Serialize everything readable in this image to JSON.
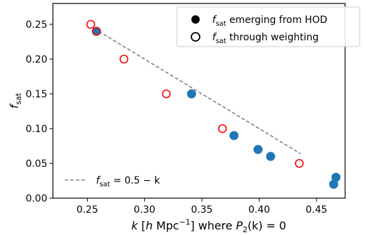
{
  "chart_data": {
    "type": "scatter",
    "xlabel": "k [h Mpc⁻¹] where P₂(k) = 0",
    "ylabel": "f_sat",
    "xlim": [
      0.22,
      0.475
    ],
    "ylim": [
      0.0,
      0.28
    ],
    "xticks": [
      0.25,
      0.3,
      0.35,
      0.4,
      0.45
    ],
    "xtick_labels": [
      "0.25",
      "0.30",
      "0.35",
      "0.40",
      "0.45"
    ],
    "yticks": [
      0.0,
      0.05,
      0.1,
      0.15,
      0.2,
      0.25
    ],
    "ytick_labels": [
      "0.00",
      "0.05",
      "0.10",
      "0.15",
      "0.20",
      "0.25"
    ],
    "grid": false,
    "legend_position": "top-right",
    "series": [
      {
        "name": "f_sat emerging from HOD",
        "marker": "filled-circle",
        "color": "#1f77b4",
        "x": [
          0.258,
          0.341,
          0.378,
          0.399,
          0.41,
          0.465,
          0.467
        ],
        "y": [
          0.24,
          0.15,
          0.09,
          0.07,
          0.06,
          0.02,
          0.03
        ]
      },
      {
        "name": "f_sat through weighting",
        "marker": "open-circle",
        "color": "#ff0000",
        "x": [
          0.253,
          0.258,
          0.282,
          0.319,
          0.368,
          0.435
        ],
        "y": [
          0.25,
          0.24,
          0.2,
          0.15,
          0.1,
          0.05
        ]
      }
    ],
    "line": {
      "name": "f_sat = 0.5 − k",
      "style": "dashed",
      "color": "#808080",
      "x": [
        0.256,
        0.436
      ],
      "y": [
        0.244,
        0.064
      ]
    },
    "legend_upper": [
      {
        "symbol": "filled-circle",
        "prefix": "f",
        "sub": "sat",
        "suffix": " emerging from HOD"
      },
      {
        "symbol": "open-circle",
        "prefix": "f",
        "sub": "sat",
        "suffix": " through weighting"
      }
    ],
    "legend_lower": {
      "prefix": "f",
      "sub": "sat",
      "suffix": " = 0.5 − k"
    },
    "axis_label_parts": {
      "x_k": "k",
      "x_units_open": " [",
      "x_h": "h",
      "x_mpc": " Mpc",
      "x_exp": "−1",
      "x_units_close": "] where ",
      "x_p": "P",
      "x_p_sub": "2",
      "x_tail": "(k) = 0",
      "y_f": "f",
      "y_sub": "sat"
    }
  }
}
